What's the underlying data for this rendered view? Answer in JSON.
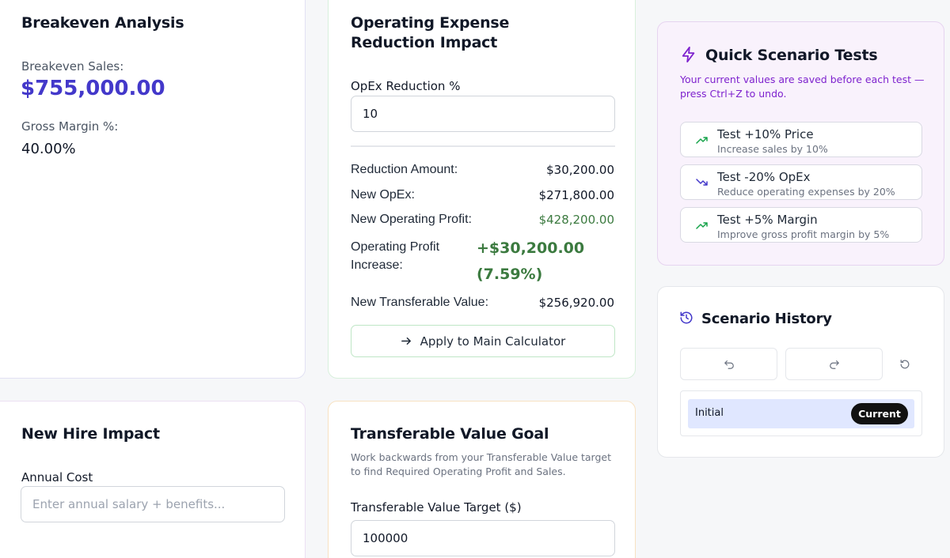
{
  "breakeven": {
    "title": "Breakeven Analysis",
    "sales_label": "Breakeven Sales:",
    "sales_value": "$755,000.00",
    "margin_label": "Gross Margin %:",
    "margin_value": "40.00%"
  },
  "opex": {
    "title": "Operating Expense Reduction Impact",
    "field_label": "OpEx Reduction %",
    "field_value": "10",
    "rows": [
      {
        "label": "Reduction Amount:",
        "value": "$30,200.00"
      },
      {
        "label": "New OpEx:",
        "value": "$271,800.00"
      },
      {
        "label": "New Operating Profit:",
        "value": "$428,200.00"
      }
    ],
    "increase_label": "Operating Profit Increase:",
    "increase_value": "+$30,200.00",
    "increase_pct": "(7.59%)",
    "transferable_label": "New Transferable Value:",
    "transferable_value": "$256,920.00",
    "apply_label": "Apply to Main Calculator"
  },
  "new_hire": {
    "title": "New Hire Impact",
    "field_label": "Annual Cost",
    "placeholder": "Enter annual salary + benefits..."
  },
  "tv_goal": {
    "title": "Transferable Value Goal",
    "description": "Work backwards from your Transferable Value target to find Required Operating Profit and Sales.",
    "field_label": "Transferable Value Target ($)",
    "field_value": "100000"
  },
  "quick_tests": {
    "title": "Quick Scenario Tests",
    "note": "Your current values are saved before each test — press Ctrl+Z to undo.",
    "tests": [
      {
        "title": "Test +10% Price",
        "desc": "Increase sales by 10%",
        "icon": "trending-up-icon"
      },
      {
        "title": "Test -20% OpEx",
        "desc": "Reduce operating expenses by 20%",
        "icon": "trending-down-icon"
      },
      {
        "title": "Test +5% Margin",
        "desc": "Improve gross profit margin by 5%",
        "icon": "trending-up-icon"
      }
    ]
  },
  "history": {
    "title": "Scenario History",
    "entry_label": "Initial",
    "badge": "Current"
  },
  "colors": {
    "accent": "#4338ca",
    "purple": "#7e22ce",
    "green": "#3b7a3f",
    "page_bg": "#f6f7f9"
  }
}
